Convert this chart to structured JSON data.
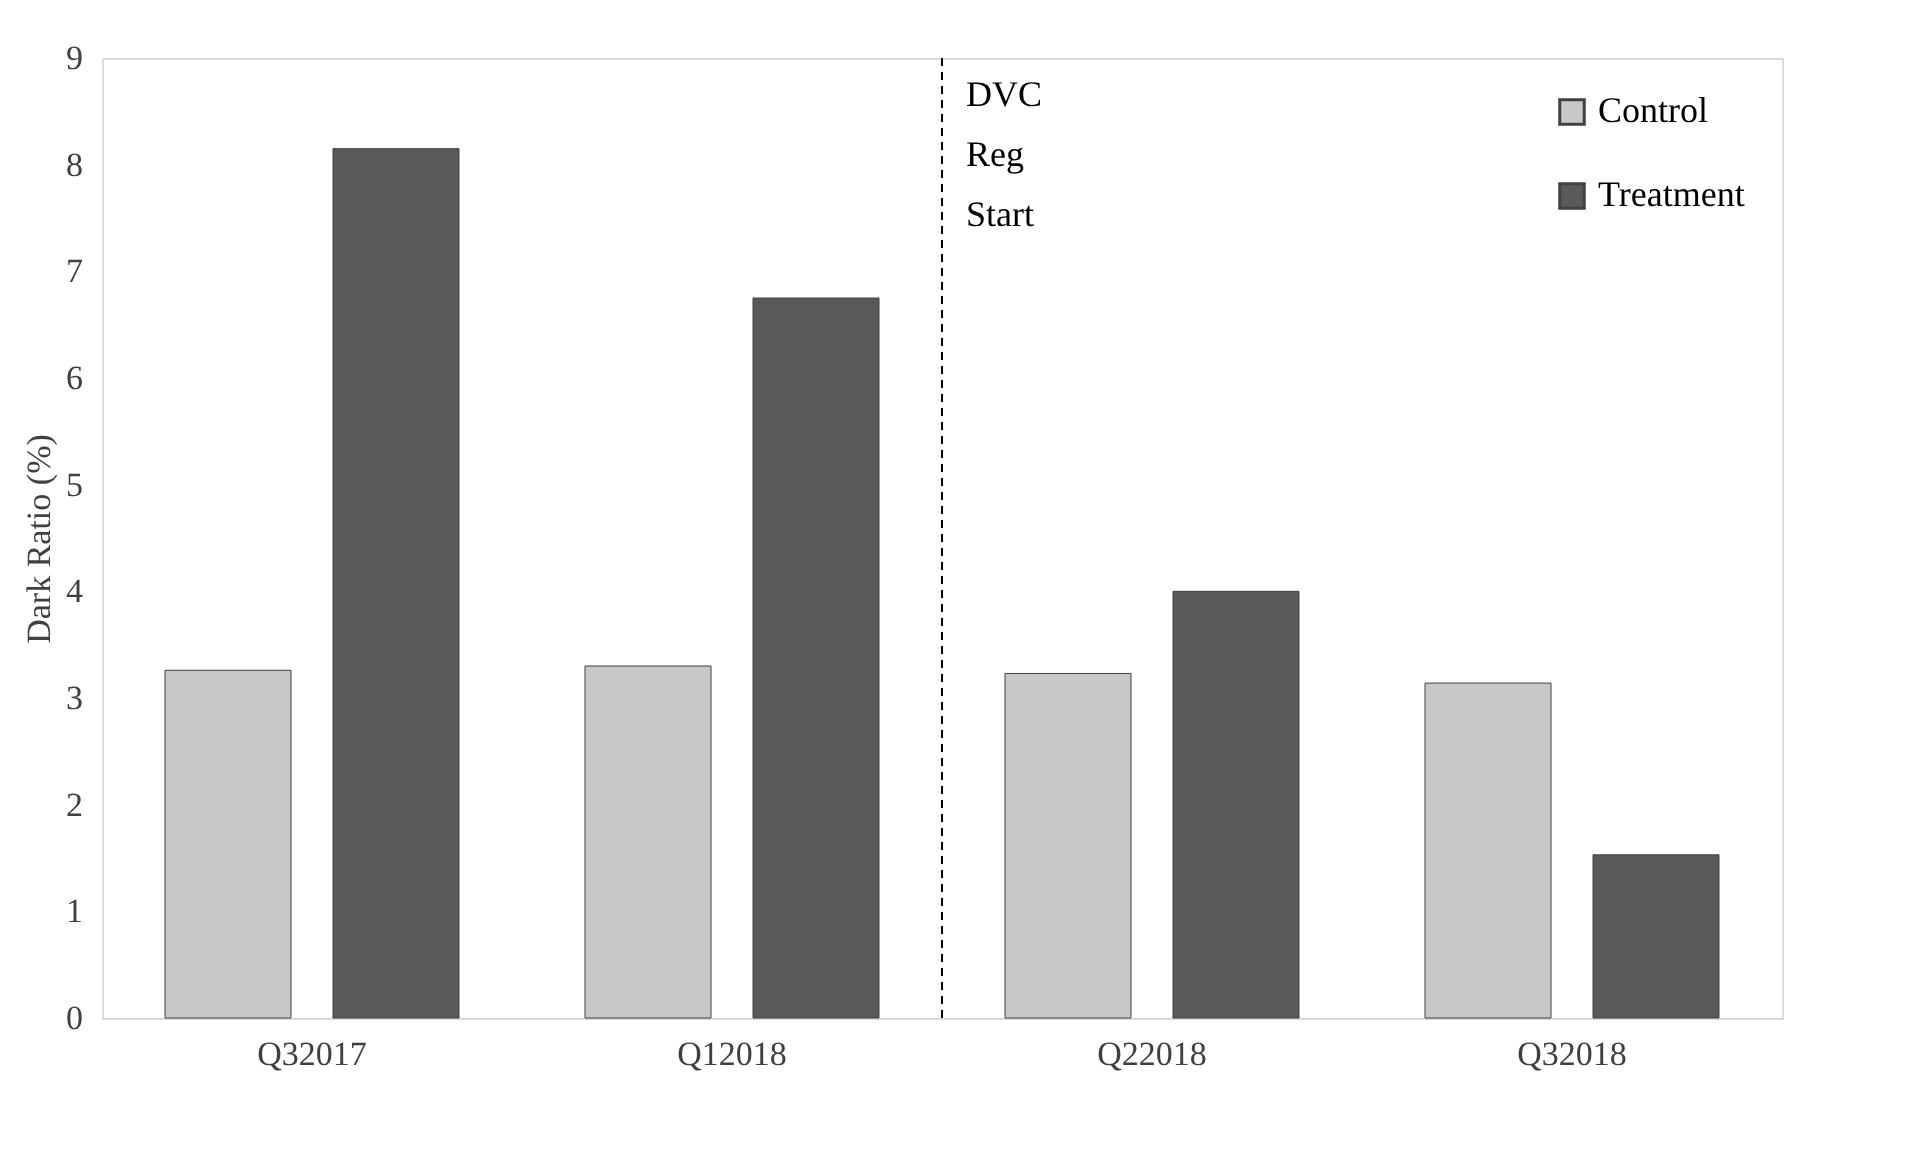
{
  "chart_data": {
    "type": "bar",
    "ylabel": "Dark Ratio (%)",
    "categories": [
      "Q32017",
      "Q12018",
      "Q22018",
      "Q32018"
    ],
    "series": [
      {
        "name": "Control",
        "color": "#c8c8c8",
        "values": [
          3.26,
          3.3,
          3.23,
          3.14
        ]
      },
      {
        "name": "Treatment",
        "color": "#595959",
        "values": [
          8.15,
          6.75,
          4.0,
          1.53
        ]
      }
    ],
    "ylim": [
      0,
      9
    ],
    "yticks": [
      0,
      1,
      2,
      3,
      4,
      5,
      6,
      7,
      8,
      9
    ],
    "grid": false,
    "legend": "top right",
    "annotations": [
      "DVC Reg Start"
    ]
  }
}
